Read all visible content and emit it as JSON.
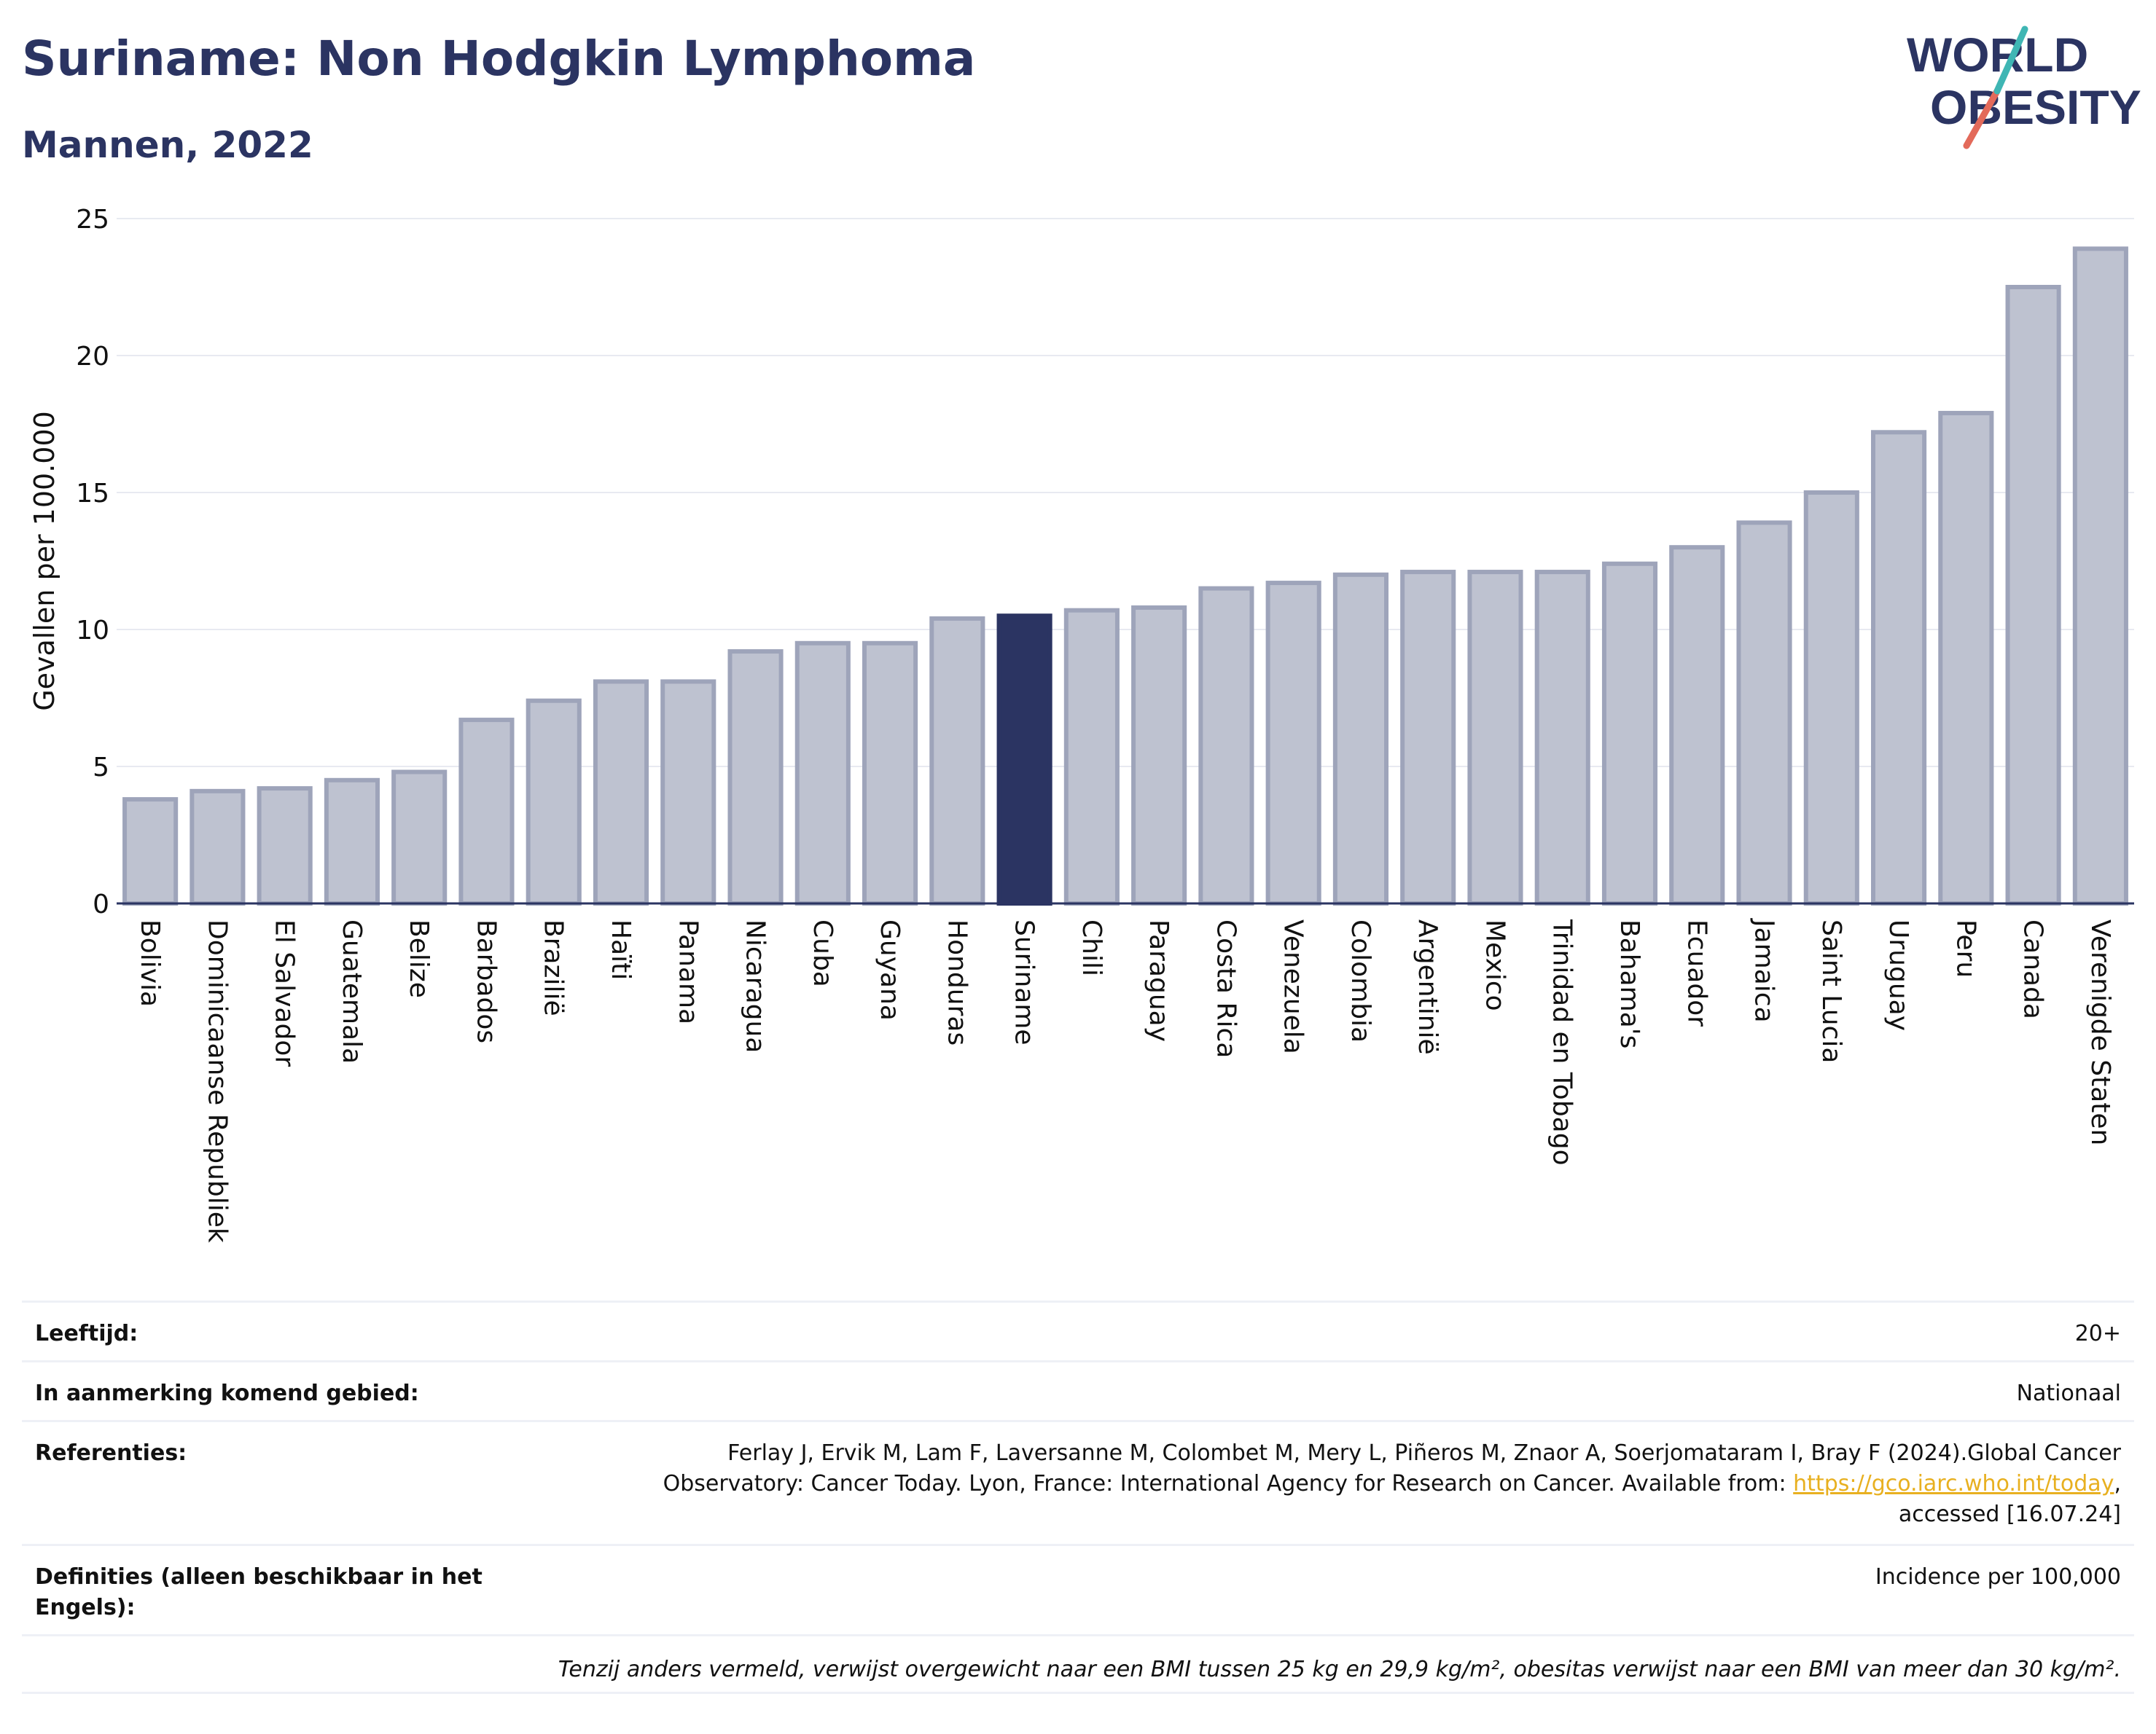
{
  "header": {
    "title": "Suriname: Non Hodgkin Lymphoma",
    "subtitle": "Mannen, 2022"
  },
  "logo": {
    "line1": "WORLD",
    "line2": "OBESITY"
  },
  "colors": {
    "bar": "#bec2d0",
    "bar_edge": "#9ea4ba",
    "highlight": "#2b3462",
    "title": "#2b3462",
    "link": "#e8b020"
  },
  "chart_data": {
    "type": "bar",
    "title": "Suriname: Non Hodgkin Lymphoma",
    "subtitle": "Mannen, 2022",
    "xlabel": "",
    "ylabel": "Gevallen per 100.000",
    "ylim": [
      0,
      25
    ],
    "yticks": [
      0,
      5,
      10,
      15,
      20,
      25
    ],
    "grid": true,
    "highlight": "Suriname",
    "categories": [
      "Bolivia",
      "Dominicaanse Republiek",
      "El Salvador",
      "Guatemala",
      "Belize",
      "Barbados",
      "Brazilië",
      "Haïti",
      "Panama",
      "Nicaragua",
      "Cuba",
      "Guyana",
      "Honduras",
      "Suriname",
      "Chili",
      "Paraguay",
      "Costa Rica",
      "Venezuela",
      "Colombia",
      "Argentinië",
      "Mexico",
      "Trinidad en Tobago",
      "Bahama's",
      "Ecuador",
      "Jamaica",
      "Saint Lucia",
      "Uruguay",
      "Peru",
      "Canada",
      "Verenigde Staten"
    ],
    "values": [
      3.8,
      4.1,
      4.2,
      4.5,
      4.8,
      6.7,
      7.4,
      8.1,
      8.1,
      9.2,
      9.5,
      9.5,
      10.4,
      10.5,
      10.7,
      10.8,
      11.5,
      11.7,
      12.0,
      12.1,
      12.1,
      12.1,
      12.4,
      13.0,
      13.9,
      15.0,
      17.2,
      17.9,
      22.5,
      23.9
    ]
  },
  "meta": {
    "age_label": "Leeftijd:",
    "age_value": "20+",
    "area_label": "In aanmerking komend gebied:",
    "area_value": "Nationaal",
    "ref_label": "Referenties:",
    "ref_text": "Ferlay J, Ervik M, Lam F, Laversanne M, Colombet M, Mery L, Piñeros M, Znaor A, Soerjomataram I, Bray F (2024).Global Cancer Observatory: Cancer Today. Lyon, France: International Agency for Research on Cancer. Available from:",
    "ref_link": "https://gco.iarc.who.int/today",
    "ref_suffix": ", accessed [16.07.24]",
    "def_label": "Definities (alleen beschikbaar in het Engels):",
    "def_value": "Incidence per 100,000",
    "note": "Tenzij anders vermeld, verwijst overgewicht naar een BMI tussen 25 kg en 29,9 kg/m², obesitas verwijst naar een BMI van meer dan 30 kg/m²."
  }
}
